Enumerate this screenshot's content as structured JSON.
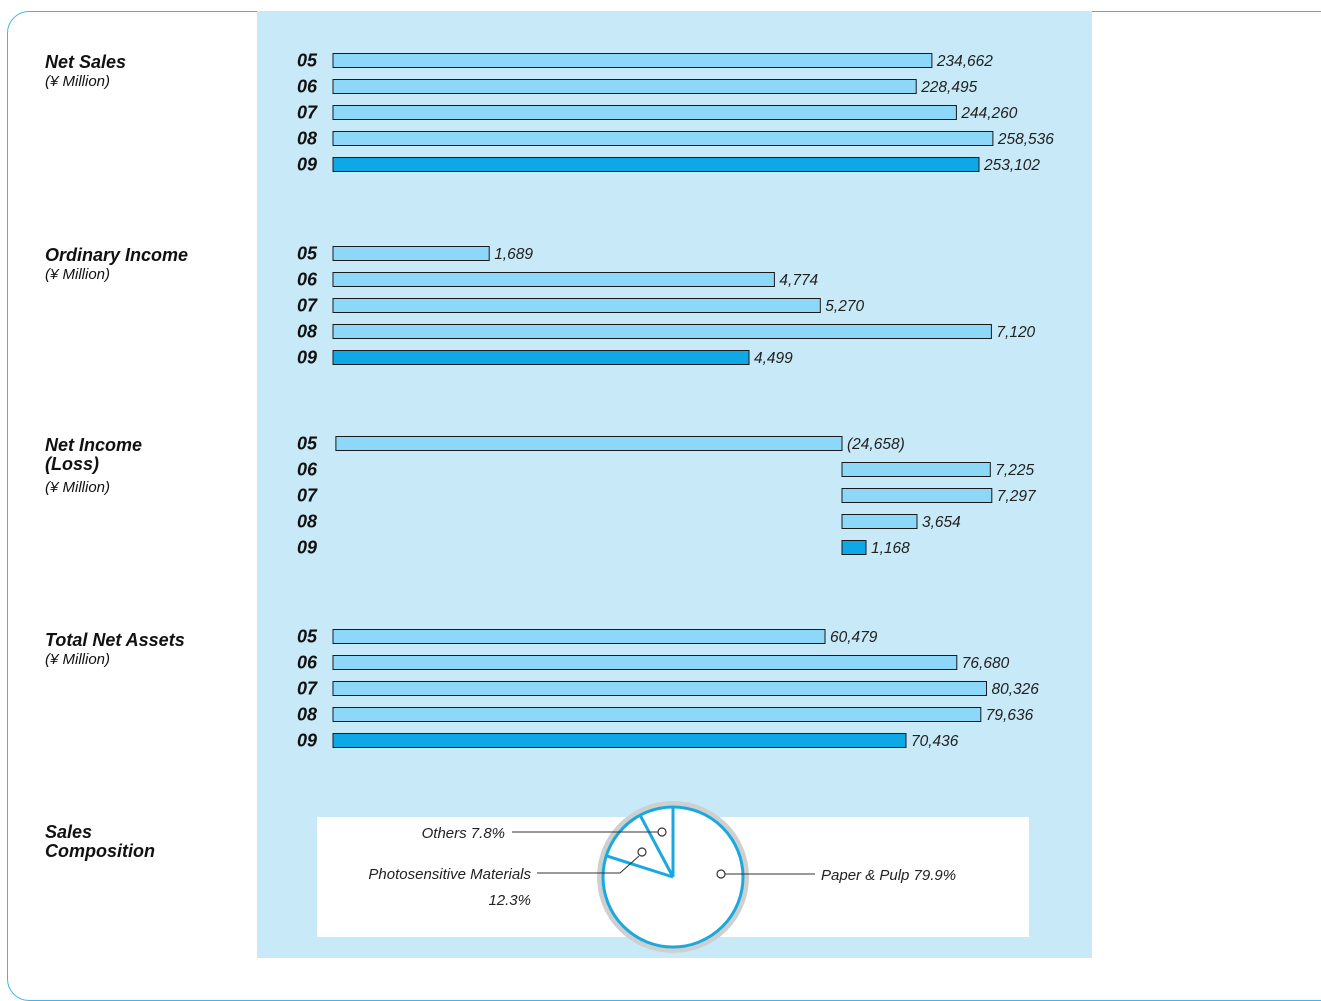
{
  "chart_data": [
    {
      "type": "bar",
      "title": "Net Sales",
      "unit": "(¥ Million)",
      "categories": [
        "05",
        "06",
        "07",
        "08",
        "09"
      ],
      "values": [
        234662,
        228495,
        244260,
        258536,
        253102
      ],
      "value_labels": [
        "234,662",
        "228,495",
        "244,260",
        "258,536",
        "253,102"
      ],
      "highlight_index": 4
    },
    {
      "type": "bar",
      "title": "Ordinary Income",
      "unit": "(¥ Million)",
      "categories": [
        "05",
        "06",
        "07",
        "08",
        "09"
      ],
      "values": [
        1689,
        4774,
        5270,
        7120,
        4499
      ],
      "value_labels": [
        "1,689",
        "4,774",
        "5,270",
        "7,120",
        "4,499"
      ],
      "highlight_index": 4
    },
    {
      "type": "bar",
      "title": "Net Income\n(Loss)",
      "unit": "(¥ Million)",
      "categories": [
        "05",
        "06",
        "07",
        "08",
        "09"
      ],
      "values": [
        -24658,
        7225,
        7297,
        3654,
        1168
      ],
      "value_labels": [
        "(24,658)",
        "7,225",
        "7,297",
        "3,654",
        "1,168"
      ],
      "highlight_index": 4
    },
    {
      "type": "bar",
      "title": "Total Net Assets",
      "unit": "(¥ Million)",
      "categories": [
        "05",
        "06",
        "07",
        "08",
        "09"
      ],
      "values": [
        60479,
        76680,
        80326,
        79636,
        70436
      ],
      "value_labels": [
        "60,479",
        "76,680",
        "80,326",
        "79,636",
        "70,436"
      ],
      "highlight_index": 4
    },
    {
      "type": "pie",
      "title": "Sales\nComposition",
      "slices": [
        {
          "label": "Paper & Pulp",
          "value": 79.9,
          "display": "Paper & Pulp  79.9%"
        },
        {
          "label": "Photosensitive Materials",
          "value": 12.3,
          "display": "Photosensitive Materials",
          "display2": "12.3%"
        },
        {
          "label": "Others",
          "value": 7.8,
          "display": "Others  7.8%"
        }
      ]
    }
  ],
  "colors": {
    "panel": "#c7e9f8",
    "bar": "#8dd8f8",
    "bar_highlight": "#0fa8e6",
    "accent": "#1aa9df"
  }
}
